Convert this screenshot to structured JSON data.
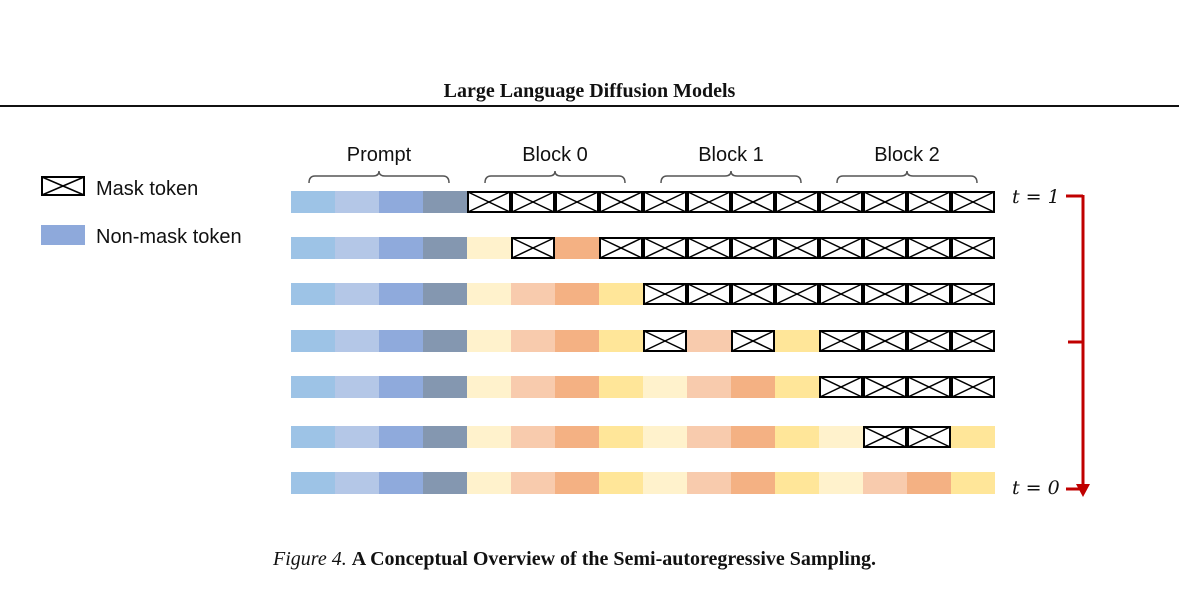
{
  "header": {
    "title": "Large Language Diffusion Models"
  },
  "legend": {
    "items": [
      {
        "kind": "mask",
        "label": "Mask token"
      },
      {
        "kind": "nonmask",
        "label": "Non-mask token",
        "color": "#8ea9db"
      }
    ]
  },
  "diagram": {
    "sections": [
      {
        "label": "Prompt",
        "start": 0,
        "end": 4
      },
      {
        "label": "Block 0",
        "start": 4,
        "end": 8
      },
      {
        "label": "Block 1",
        "start": 8,
        "end": 12
      },
      {
        "label": "Block 2",
        "start": 12,
        "end": 16
      }
    ],
    "prompt_colors": [
      "#9dc3e6",
      "#b4c7e7",
      "#8faadc",
      "#8497b0"
    ],
    "generated_colors": [
      "#fff2cc",
      "#f8cbad",
      "#f4b183",
      "#ffe699"
    ],
    "rows": [
      "PPPPMMMMMMMMMMMM",
      "PPPPGMGMMMMMMMMM",
      "PPPPGGGGMMMMMMMM",
      "PPPPGGGGMGMGMMMM",
      "PPPPGGGGGGGGMMMM",
      "PPPPGGGGGGGGGMMG",
      "PPPPGGGGGGGGGGGG"
    ],
    "time_axis": {
      "start_label": "t = 1",
      "end_label": "t = 0",
      "color": "#c00000"
    }
  },
  "caption": {
    "figure_number": "Figure 4.",
    "title": "A Conceptual Overview of the Semi-autoregressive Sampling."
  }
}
